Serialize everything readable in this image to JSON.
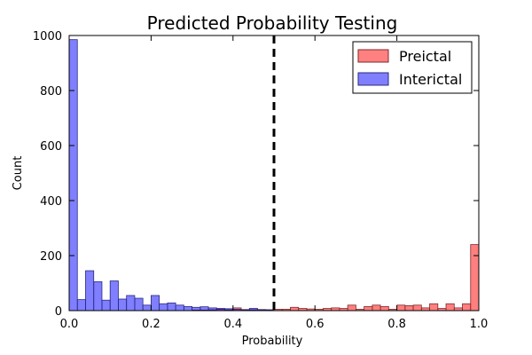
{
  "chart_data": {
    "type": "bar",
    "title": "Predicted Probability Testing",
    "xlabel": "Probability",
    "ylabel": "Count",
    "xlim": [
      0.0,
      1.0
    ],
    "ylim": [
      0,
      1000
    ],
    "x_ticks": [
      "0.0",
      "0.2",
      "0.4",
      "0.6",
      "0.8",
      "1.0"
    ],
    "y_ticks": [
      "0",
      "200",
      "400",
      "600",
      "800",
      "1000"
    ],
    "bin_width": 0.02,
    "threshold": 0.5,
    "legend_position": "top-right",
    "grid": false,
    "series": [
      {
        "name": "Preictal",
        "color": "#ff0000",
        "alpha": 0.5,
        "bins": [
          {
            "x": 0.3,
            "y": 2
          },
          {
            "x": 0.32,
            "y": 2
          },
          {
            "x": 0.34,
            "y": 3
          },
          {
            "x": 0.36,
            "y": 5
          },
          {
            "x": 0.38,
            "y": 3
          },
          {
            "x": 0.4,
            "y": 10
          },
          {
            "x": 0.42,
            "y": 4
          },
          {
            "x": 0.44,
            "y": 3
          },
          {
            "x": 0.46,
            "y": 4
          },
          {
            "x": 0.48,
            "y": 3
          },
          {
            "x": 0.5,
            "y": 5
          },
          {
            "x": 0.52,
            "y": 5
          },
          {
            "x": 0.54,
            "y": 12
          },
          {
            "x": 0.56,
            "y": 8
          },
          {
            "x": 0.58,
            "y": 6
          },
          {
            "x": 0.6,
            "y": 5
          },
          {
            "x": 0.62,
            "y": 8
          },
          {
            "x": 0.64,
            "y": 10
          },
          {
            "x": 0.66,
            "y": 8
          },
          {
            "x": 0.68,
            "y": 20
          },
          {
            "x": 0.7,
            "y": 5
          },
          {
            "x": 0.72,
            "y": 15
          },
          {
            "x": 0.74,
            "y": 20
          },
          {
            "x": 0.76,
            "y": 15
          },
          {
            "x": 0.78,
            "y": 5
          },
          {
            "x": 0.8,
            "y": 20
          },
          {
            "x": 0.82,
            "y": 18
          },
          {
            "x": 0.84,
            "y": 20
          },
          {
            "x": 0.86,
            "y": 10
          },
          {
            "x": 0.88,
            "y": 25
          },
          {
            "x": 0.9,
            "y": 8
          },
          {
            "x": 0.92,
            "y": 25
          },
          {
            "x": 0.94,
            "y": 10
          },
          {
            "x": 0.96,
            "y": 25
          },
          {
            "x": 0.98,
            "y": 240
          }
        ]
      },
      {
        "name": "Interictal",
        "color": "#0000ff",
        "alpha": 0.5,
        "bins": [
          {
            "x": 0.0,
            "y": 985
          },
          {
            "x": 0.02,
            "y": 40
          },
          {
            "x": 0.04,
            "y": 145
          },
          {
            "x": 0.06,
            "y": 105
          },
          {
            "x": 0.08,
            "y": 38
          },
          {
            "x": 0.1,
            "y": 108
          },
          {
            "x": 0.12,
            "y": 42
          },
          {
            "x": 0.14,
            "y": 55
          },
          {
            "x": 0.16,
            "y": 45
          },
          {
            "x": 0.18,
            "y": 20
          },
          {
            "x": 0.2,
            "y": 55
          },
          {
            "x": 0.22,
            "y": 25
          },
          {
            "x": 0.24,
            "y": 28
          },
          {
            "x": 0.26,
            "y": 20
          },
          {
            "x": 0.28,
            "y": 15
          },
          {
            "x": 0.3,
            "y": 12
          },
          {
            "x": 0.32,
            "y": 14
          },
          {
            "x": 0.34,
            "y": 10
          },
          {
            "x": 0.36,
            "y": 8
          },
          {
            "x": 0.38,
            "y": 7
          },
          {
            "x": 0.4,
            "y": 5
          },
          {
            "x": 0.42,
            "y": 3
          },
          {
            "x": 0.44,
            "y": 8
          },
          {
            "x": 0.46,
            "y": 3
          },
          {
            "x": 0.48,
            "y": 3
          }
        ]
      }
    ]
  }
}
